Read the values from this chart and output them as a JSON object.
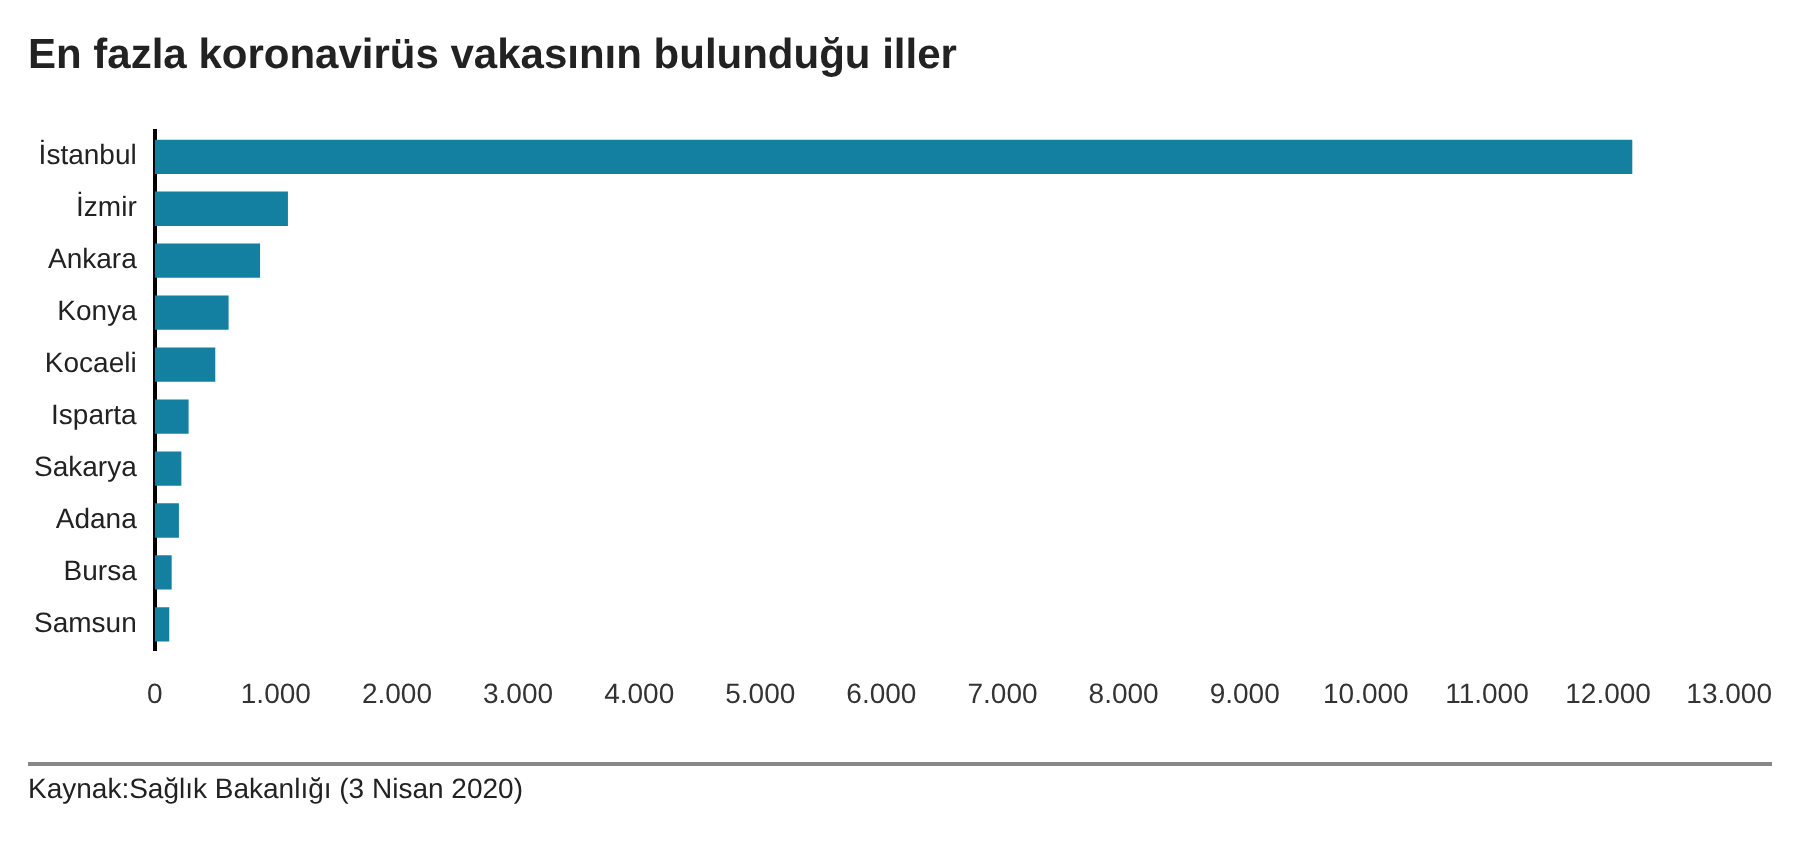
{
  "chart_data": {
    "type": "bar",
    "orientation": "horizontal",
    "title": "En fazla koronavirüs vakasının bulunduğu iller",
    "categories": [
      "İstanbul",
      "İzmir",
      "Ankara",
      "Konya",
      "Kocaeli",
      "Isparta",
      "Sakarya",
      "Adana",
      "Bursa",
      "Samsun"
    ],
    "values": [
      12200,
      1100,
      870,
      610,
      500,
      280,
      220,
      200,
      140,
      120
    ],
    "color": "#1380a1",
    "xlim": [
      0,
      13000
    ],
    "xticks": [
      0,
      {
        "value": 1000,
        "label": "1.000"
      },
      {
        "value": 2000,
        "label": "2.000"
      },
      {
        "value": 3000,
        "label": "3.000"
      },
      {
        "value": 4000,
        "label": "4.000"
      },
      {
        "value": 5000,
        "label": "5.000"
      },
      {
        "value": 6000,
        "label": "6.000"
      },
      {
        "value": 7000,
        "label": "7.000"
      },
      {
        "value": 8000,
        "label": "8.000"
      },
      {
        "value": 9000,
        "label": "9.000"
      },
      {
        "value": 10000,
        "label": "10.000"
      },
      {
        "value": 11000,
        "label": "11.000"
      },
      {
        "value": 12000,
        "label": "12.000"
      },
      {
        "value": 13000,
        "label": "13.000"
      }
    ],
    "grid": false,
    "legend": false,
    "annotations": [
      "Kaynak:Sağlık Bakanlığı (3 Nisan 2020)"
    ]
  }
}
